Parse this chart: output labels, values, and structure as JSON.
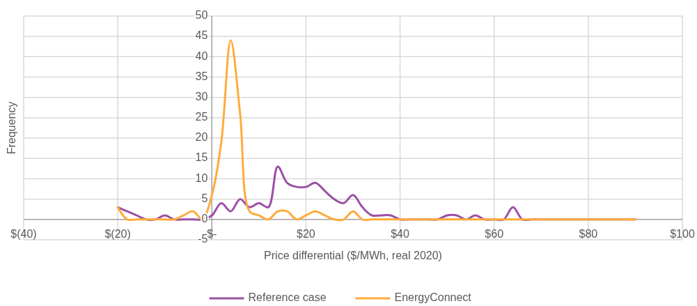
{
  "chart_data": {
    "type": "line",
    "xlabel": "Price differential ($/MWh, real 2020)",
    "ylabel": "Frequency",
    "x": [
      -20,
      -18,
      -16,
      -14,
      -12,
      -10,
      -8,
      -6,
      -4,
      -2,
      0,
      2,
      4,
      6,
      8,
      10,
      12,
      14,
      16,
      18,
      20,
      22,
      24,
      26,
      28,
      30,
      32,
      34,
      36,
      38,
      40,
      42,
      44,
      46,
      48,
      50,
      52,
      54,
      56,
      58,
      60,
      62,
      64,
      66,
      68,
      70,
      72,
      74,
      76,
      78,
      80,
      82,
      84,
      86,
      88,
      90
    ],
    "series": [
      {
        "name": "Reference case",
        "color": "#9b4fa5",
        "values": [
          3,
          2,
          1,
          0,
          0,
          1,
          0,
          0,
          0,
          0,
          1,
          4,
          2,
          5,
          3,
          4,
          3,
          13,
          9,
          8,
          8,
          9,
          7,
          5,
          4,
          6,
          3,
          1,
          1,
          1,
          0,
          0,
          0,
          0,
          0,
          1,
          1,
          0,
          1,
          0,
          0,
          0,
          3,
          0,
          0,
          0,
          0,
          0,
          0,
          0,
          0,
          0,
          0,
          0,
          0,
          0
        ]
      },
      {
        "name": "EnergyConnect",
        "color": "#ffab3b",
        "values": [
          3,
          0,
          0,
          0,
          0,
          0,
          0,
          1,
          2,
          0,
          6,
          19,
          44,
          26,
          2,
          1,
          0,
          2,
          2,
          0,
          1,
          2,
          1,
          0,
          0,
          2,
          0,
          0,
          0,
          0,
          0,
          0,
          0,
          0,
          0,
          0,
          0,
          0,
          0,
          0,
          0,
          0,
          0,
          0,
          0,
          0,
          0,
          0,
          0,
          0,
          0,
          0,
          0,
          0,
          0,
          0
        ]
      }
    ],
    "xlim": [
      -40,
      100
    ],
    "xticks": [
      {
        "value": -40,
        "label": "$(40)"
      },
      {
        "value": -20,
        "label": "$(20)"
      },
      {
        "value": 0,
        "label": "$-"
      },
      {
        "value": 20,
        "label": "$20"
      },
      {
        "value": 40,
        "label": "$40"
      },
      {
        "value": 60,
        "label": "$60"
      },
      {
        "value": 80,
        "label": "$80"
      },
      {
        "value": 100,
        "label": "$100"
      }
    ],
    "ylim": [
      -5,
      50
    ],
    "yticks": [
      -5,
      0,
      5,
      10,
      15,
      20,
      25,
      30,
      35,
      40,
      45,
      50
    ],
    "grid": true,
    "legend": "bottom",
    "marker": "none",
    "line_style": "solid"
  }
}
